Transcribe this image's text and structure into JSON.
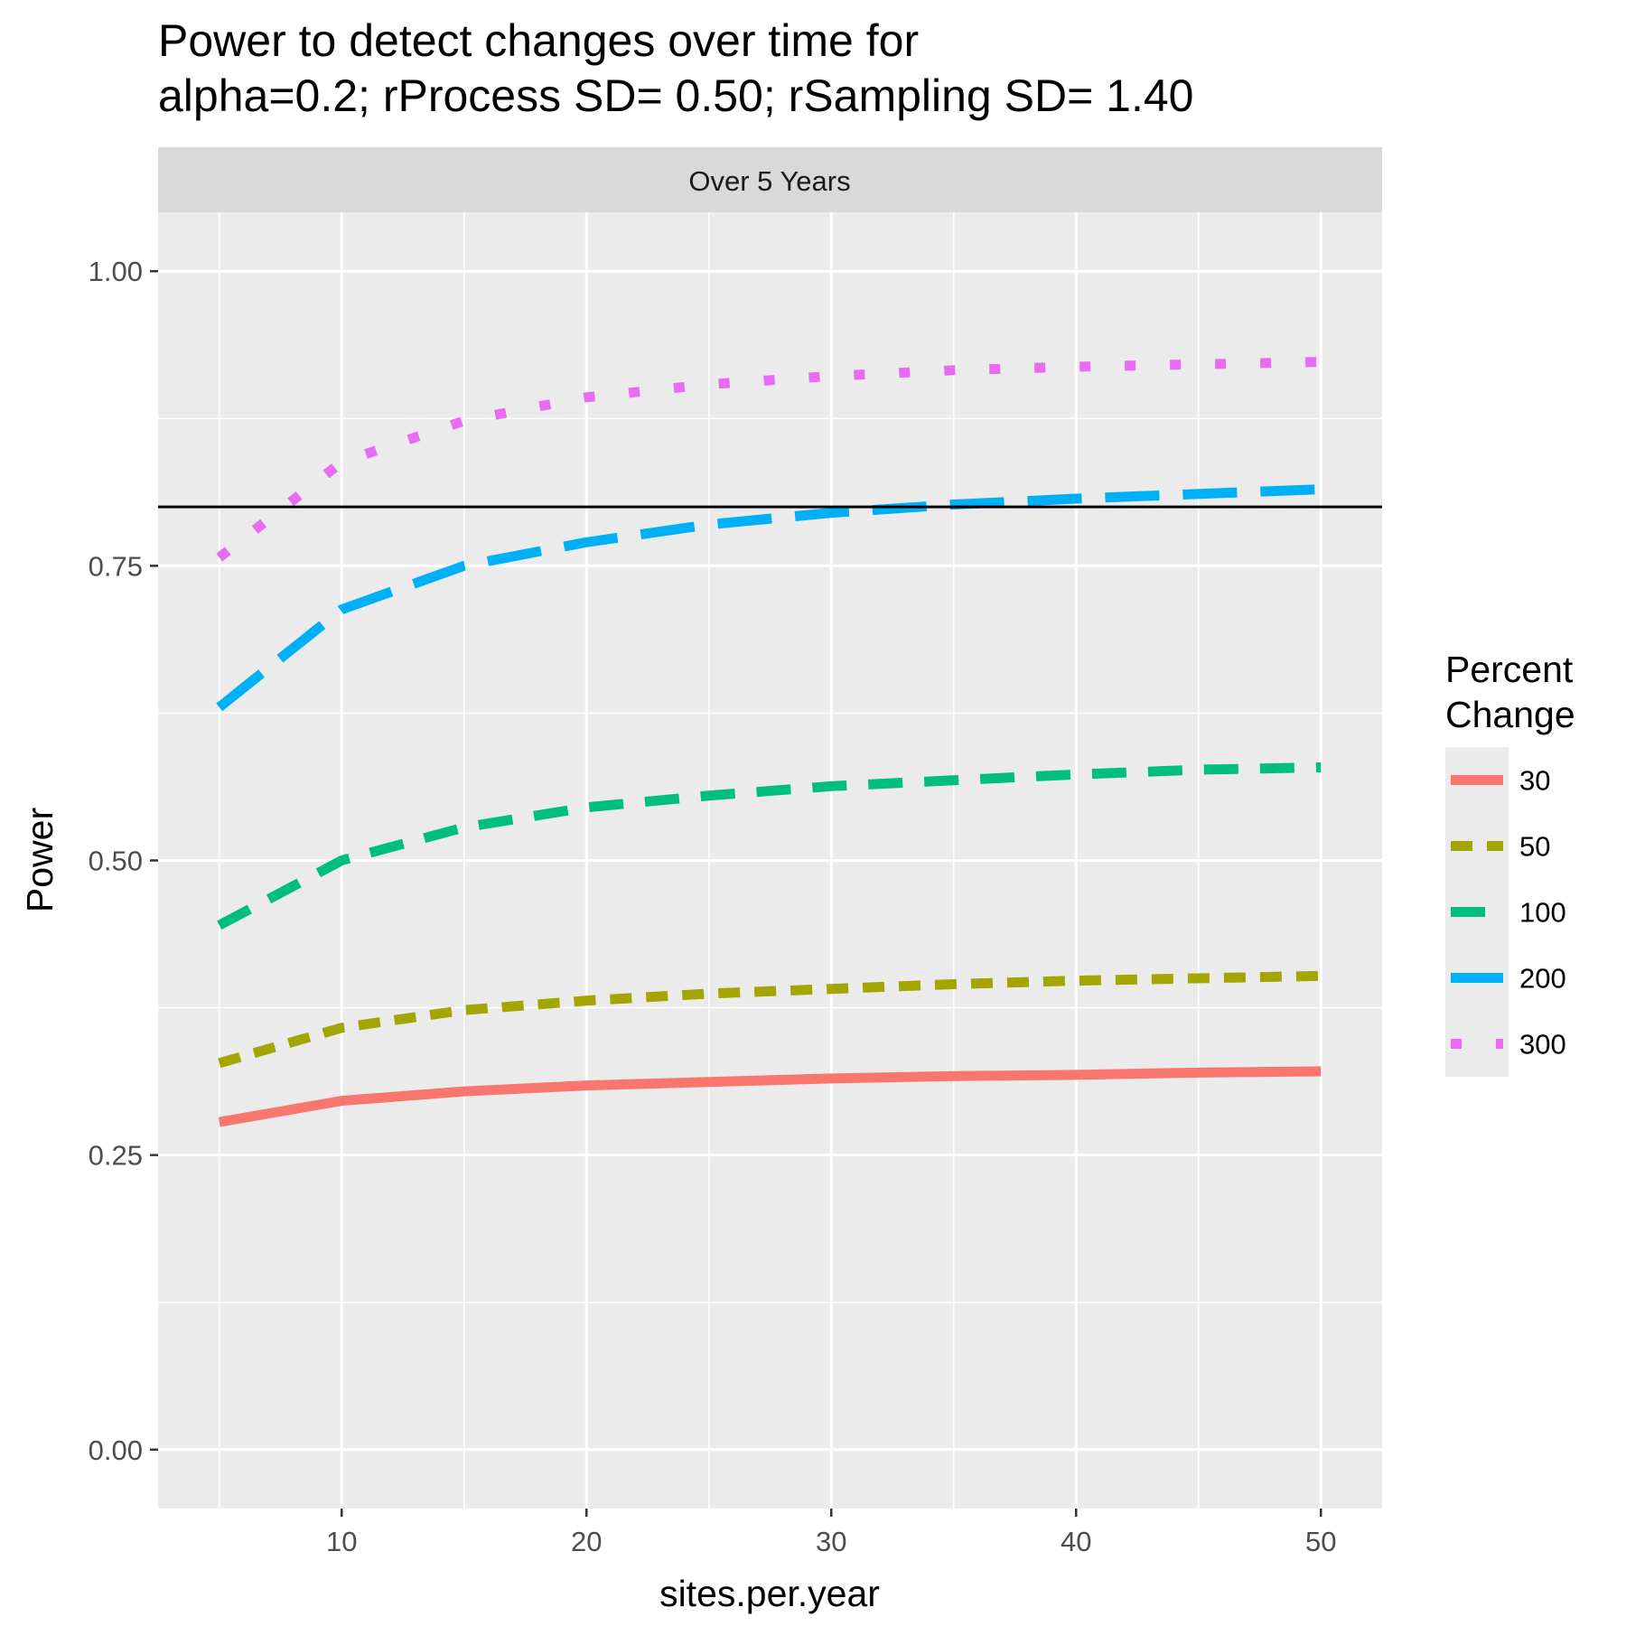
{
  "chart_data": {
    "type": "line",
    "title_line1": "Power to detect changes over time for",
    "title_line2": "alpha=0.2; rProcess SD= 0.50; rSampling SD= 1.40",
    "facet_label": "Over 5 Years",
    "xlabel": "sites.per.year",
    "ylabel": "Power",
    "xlim": [
      2.5,
      52.5
    ],
    "ylim": [
      -0.05,
      1.05
    ],
    "x_ticks": [
      10,
      20,
      30,
      40,
      50
    ],
    "x_tick_labels": [
      "10",
      "20",
      "30",
      "40",
      "50"
    ],
    "y_ticks": [
      0,
      0.25,
      0.5,
      0.75,
      1
    ],
    "y_tick_labels": [
      "0.00",
      "0.25",
      "0.50",
      "0.75",
      "1.00"
    ],
    "reference_line_y": 0.8,
    "grid": true,
    "legend_title_line1": "Percent",
    "legend_title_line2": "Change",
    "legend_position": "right",
    "x": [
      5,
      10,
      15,
      20,
      25,
      30,
      35,
      40,
      45,
      50
    ],
    "series": [
      {
        "name": "30",
        "color": "#F8766D",
        "dash": "solid",
        "values": [
          0.278,
          0.296,
          0.304,
          0.309,
          0.312,
          0.315,
          0.317,
          0.318,
          0.32,
          0.321
        ]
      },
      {
        "name": "50",
        "color": "#A3A500",
        "dash": "dashed-short",
        "values": [
          0.328,
          0.358,
          0.373,
          0.381,
          0.387,
          0.391,
          0.395,
          0.398,
          0.4,
          0.402
        ]
      },
      {
        "name": "100",
        "color": "#00BF7D",
        "dash": "dashed",
        "values": [
          0.445,
          0.5,
          0.528,
          0.545,
          0.555,
          0.563,
          0.568,
          0.573,
          0.577,
          0.579
        ]
      },
      {
        "name": "200",
        "color": "#00B0F6",
        "dash": "long-dash",
        "values": [
          0.63,
          0.713,
          0.75,
          0.77,
          0.785,
          0.795,
          0.802,
          0.807,
          0.811,
          0.815
        ]
      },
      {
        "name": "300",
        "color": "#E76BF3",
        "dash": "dotted",
        "values": [
          0.757,
          0.838,
          0.873,
          0.893,
          0.904,
          0.911,
          0.916,
          0.919,
          0.921,
          0.923
        ]
      }
    ]
  }
}
